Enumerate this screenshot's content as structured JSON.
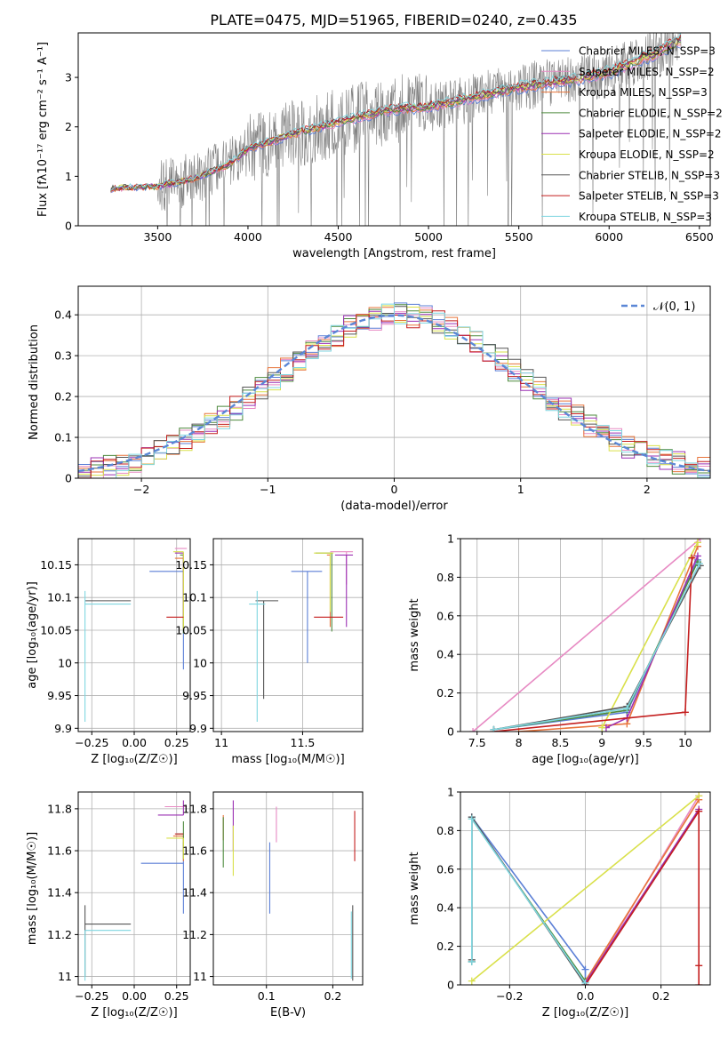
{
  "figure_title": "PLATE=0475, MJD=51965, FIBERID=0240, z=0.435",
  "colors": {
    "grid": "#b0b0b0",
    "normal_curve": "#5b87d6"
  },
  "chart_data": [
    {
      "id": "spectrum",
      "type": "line",
      "xlabel": "wavelength [Angstrom, rest frame]",
      "ylabel": "Flux [fλ10⁻¹⁷ erg cm⁻² s⁻¹ A⁻¹]",
      "xlim": [
        3060,
        6560
      ],
      "ylim": [
        0,
        3.9
      ],
      "xticks": [
        3500,
        4000,
        4500,
        5000,
        5500,
        6000,
        6500
      ],
      "yticks": [
        0,
        1,
        2,
        3
      ],
      "grid": false,
      "legend_position": "top-right",
      "data_start": 3240,
      "data_end": 6400,
      "series": [
        {
          "name": "Chabrier MILES, N_SSP=3",
          "color": "#5b7fd6"
        },
        {
          "name": "Salpeter MILES, N_SSP=2",
          "color": "#e78ac3"
        },
        {
          "name": "Kroupa MILES, N_SSP=3",
          "color": "#e8743b"
        },
        {
          "name": "Chabrier ELODIE, N_SSP=2",
          "color": "#4e8a3e"
        },
        {
          "name": "Salpeter ELODIE, N_SSP=2",
          "color": "#9b30b3"
        },
        {
          "name": "Kroupa ELODIE, N_SSP=2",
          "color": "#d9e04a"
        },
        {
          "name": "Chabrier STELIB, N_SSP=3",
          "color": "#555555"
        },
        {
          "name": "Salpeter STELIB, N_SSP=3",
          "color": "#c41e1e"
        },
        {
          "name": "Kroupa STELIB, N_SSP=3",
          "color": "#7fd6e0"
        }
      ],
      "model_profile": {
        "x": [
          3240,
          3500,
          3700,
          3900,
          4000,
          4200,
          4500,
          4800,
          5000,
          5200,
          5500,
          5800,
          6000,
          6200,
          6400
        ],
        "y": [
          0.75,
          0.8,
          0.95,
          1.25,
          1.55,
          1.8,
          2.1,
          2.35,
          2.4,
          2.55,
          2.8,
          2.95,
          3.1,
          3.4,
          3.75
        ]
      }
    },
    {
      "id": "residuals",
      "type": "histogram",
      "xlabel": "(data-model)/error",
      "ylabel": "Normed distribution",
      "xlim": [
        -2.5,
        2.5
      ],
      "ylim": [
        0,
        0.47
      ],
      "xticks": [
        -2,
        -1,
        0,
        1,
        2
      ],
      "yticks": [
        0.0,
        0.1,
        0.2,
        0.3,
        0.4
      ],
      "grid": true,
      "legend_position": "top-right",
      "legend_label": "𝒩(0, 1)",
      "bin_width": 0.1
    },
    {
      "id": "age-vs-Z",
      "type": "scatter",
      "xlabel": "Z [log₁₀(Z/Z☉)]",
      "ylabel": "age  [log₁₀(age/yr)]",
      "xlim": [
        -0.33,
        0.33
      ],
      "ylim": [
        9.895,
        10.19
      ],
      "xticks": [
        -0.25,
        0.0,
        0.25
      ],
      "xticklabels": [
        "−0.25",
        "0.00",
        "0.25"
      ],
      "yticks": [
        9.9,
        9.95,
        10.0,
        10.05,
        10.1,
        10.15
      ],
      "grid": true
    },
    {
      "id": "age-vs-mass",
      "type": "scatter",
      "xlabel": "mass [log₁₀(M/M☉)]",
      "ylabel": "",
      "xlim": [
        10.95,
        11.87
      ],
      "ylim": [
        9.895,
        10.19
      ],
      "xticks": [
        11.0,
        11.5
      ],
      "yticks": [
        9.9,
        9.95,
        10.0,
        10.05,
        10.1,
        10.15
      ],
      "grid": true
    },
    {
      "id": "massweight-vs-age",
      "type": "line",
      "xlabel": "age  [log₁₀(age/yr)]",
      "ylabel": "mass weight",
      "xlim": [
        7.3,
        10.3
      ],
      "ylim": [
        0,
        1
      ],
      "xticks": [
        7.5,
        8.0,
        8.5,
        9.0,
        9.5,
        10.0
      ],
      "yticks": [
        0.0,
        0.2,
        0.4,
        0.6,
        0.8,
        1.0
      ],
      "grid": true
    },
    {
      "id": "mass-vs-Z",
      "type": "scatter",
      "xlabel": "Z [log₁₀(Z/Z☉)]",
      "ylabel": "mass [log₁₀(M/M☉)]",
      "xlim": [
        -0.33,
        0.33
      ],
      "ylim": [
        10.96,
        11.88
      ],
      "xticks": [
        -0.25,
        0.0,
        0.25
      ],
      "xticklabels": [
        "−0.25",
        "0.00",
        "0.25"
      ],
      "yticks": [
        11.0,
        11.2,
        11.4,
        11.6,
        11.8
      ],
      "grid": true
    },
    {
      "id": "mass-vs-EBV",
      "type": "scatter",
      "xlabel": "E(B-V)",
      "ylabel": "",
      "xlim": [
        0.02,
        0.245
      ],
      "ylim": [
        10.96,
        11.88
      ],
      "xticks": [
        0.1,
        0.2
      ],
      "yticks": [
        11.0,
        11.2,
        11.4,
        11.6,
        11.8
      ],
      "grid": true
    },
    {
      "id": "massweight-vs-Z",
      "type": "line",
      "xlabel": "Z [log₁₀(Z/Z☉)]",
      "ylabel": "mass weight",
      "xlim": [
        -0.33,
        0.33
      ],
      "ylim": [
        0,
        1
      ],
      "xticks": [
        -0.2,
        0.0,
        0.2
      ],
      "xticklabels": [
        "−0.2",
        "0.0",
        "0.2"
      ],
      "yticks": [
        0.0,
        0.2,
        0.4,
        0.6,
        0.8,
        1.0
      ],
      "grid": true
    }
  ]
}
